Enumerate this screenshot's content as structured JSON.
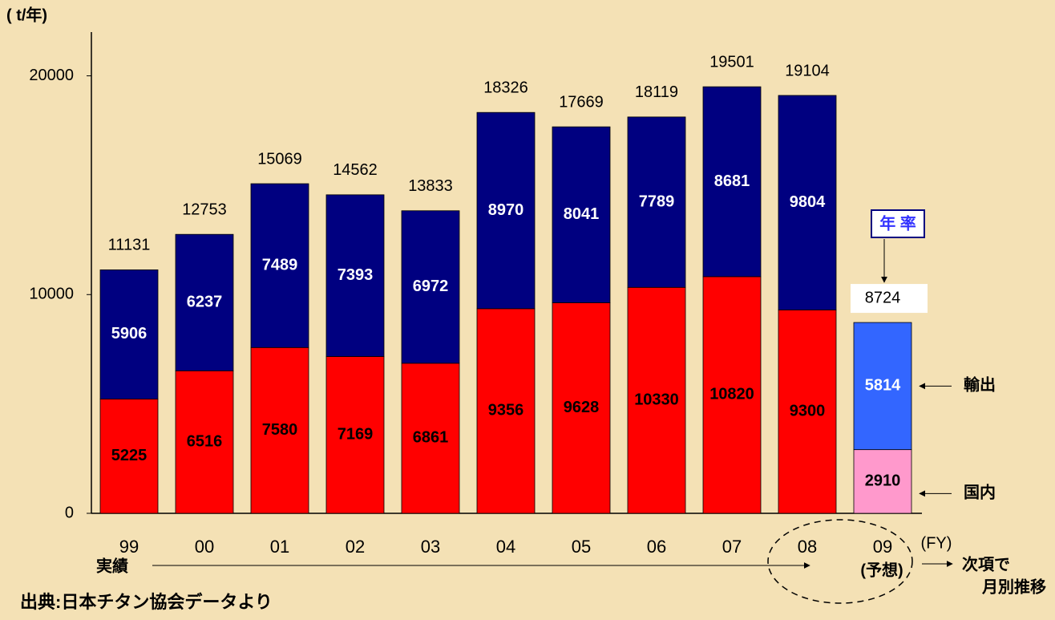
{
  "chart_data": {
    "type": "stacked_bar",
    "unit_label": "( t/年)",
    "categories": [
      "99",
      "00",
      "01",
      "02",
      "03",
      "04",
      "05",
      "06",
      "07",
      "08",
      "09"
    ],
    "series": [
      {
        "name": "国内",
        "color": "#ff0000",
        "colors": [
          "#ff0000",
          "#ff0000",
          "#ff0000",
          "#ff0000",
          "#ff0000",
          "#ff0000",
          "#ff0000",
          "#ff0000",
          "#ff0000",
          "#ff0000",
          "#ff99cc"
        ],
        "label_color": "#000000",
        "values": [
          5225,
          6516,
          7580,
          7169,
          6861,
          9356,
          9628,
          10330,
          10820,
          9300,
          2910
        ]
      },
      {
        "name": "輸出",
        "color": "#000080",
        "colors": [
          "#000080",
          "#000080",
          "#000080",
          "#000080",
          "#000080",
          "#000080",
          "#000080",
          "#000080",
          "#000080",
          "#000080",
          "#3366ff"
        ],
        "label_color": "#ffffff",
        "values": [
          5906,
          6237,
          7489,
          7393,
          6972,
          8970,
          8041,
          7789,
          8681,
          9804,
          5814
        ]
      }
    ],
    "totals": [
      11131,
      12753,
      15069,
      14562,
      13833,
      18326,
      17669,
      18119,
      19501,
      19104,
      8724
    ],
    "ylim": [
      0,
      22000
    ],
    "yticks": [
      0,
      10000,
      20000
    ],
    "annotations": [
      "年 率",
      "実績",
      "(予想)",
      "(FY)",
      "次項で",
      "月別推移",
      "出典:日本チタン協会データより"
    ]
  }
}
